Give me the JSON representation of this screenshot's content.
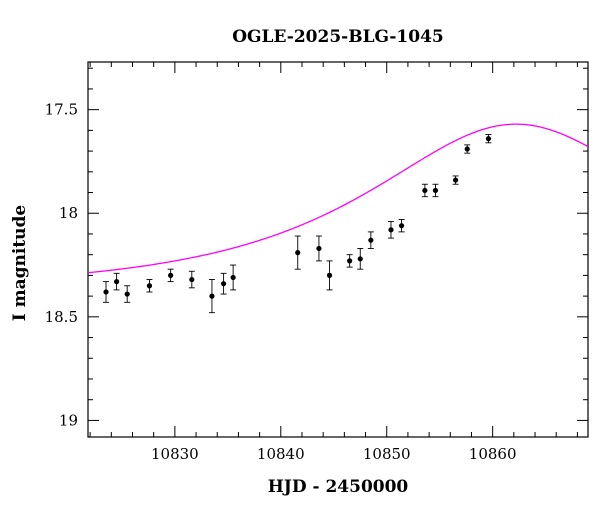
{
  "chart_data": {
    "type": "scatter",
    "title": "OGLE-2025-BLG-1045",
    "xlabel": "HJD - 2450000",
    "ylabel": "I magnitude",
    "xlim": [
      10821.8,
      10869.0
    ],
    "ylim": [
      19.08,
      17.27
    ],
    "y_inverted": true,
    "xticks": [
      10830,
      10840,
      10850,
      10860
    ],
    "yticks": [
      17.5,
      18,
      18.5,
      19
    ],
    "ytick_labels": [
      "17.5",
      "18",
      "18.5",
      "19"
    ],
    "xminor_step": 2,
    "yminor_step": 0.1,
    "grid": false,
    "series": [
      {
        "kind": "points",
        "color": "#000000",
        "points": [
          {
            "x": 10823.5,
            "y": 18.38,
            "err": 0.05
          },
          {
            "x": 10824.5,
            "y": 18.33,
            "err": 0.04
          },
          {
            "x": 10825.5,
            "y": 18.39,
            "err": 0.04
          },
          {
            "x": 10827.6,
            "y": 18.35,
            "err": 0.03
          },
          {
            "x": 10829.6,
            "y": 18.3,
            "err": 0.03
          },
          {
            "x": 10831.6,
            "y": 18.32,
            "err": 0.04
          },
          {
            "x": 10833.5,
            "y": 18.4,
            "err": 0.08
          },
          {
            "x": 10834.6,
            "y": 18.34,
            "err": 0.05
          },
          {
            "x": 10835.5,
            "y": 18.31,
            "err": 0.06
          },
          {
            "x": 10841.6,
            "y": 18.19,
            "err": 0.08
          },
          {
            "x": 10843.6,
            "y": 18.17,
            "err": 0.06
          },
          {
            "x": 10844.6,
            "y": 18.3,
            "err": 0.07
          },
          {
            "x": 10846.5,
            "y": 18.23,
            "err": 0.03
          },
          {
            "x": 10847.5,
            "y": 18.22,
            "err": 0.05
          },
          {
            "x": 10848.5,
            "y": 18.13,
            "err": 0.04
          },
          {
            "x": 10850.4,
            "y": 18.08,
            "err": 0.04
          },
          {
            "x": 10851.4,
            "y": 18.06,
            "err": 0.03
          },
          {
            "x": 10853.6,
            "y": 17.89,
            "err": 0.03
          },
          {
            "x": 10854.6,
            "y": 17.89,
            "err": 0.03
          },
          {
            "x": 10856.5,
            "y": 17.84,
            "err": 0.02
          },
          {
            "x": 10857.6,
            "y": 17.69,
            "err": 0.02
          },
          {
            "x": 10859.6,
            "y": 17.64,
            "err": 0.02
          }
        ]
      },
      {
        "kind": "model",
        "color": "#ff00ff",
        "baseline": 18.37,
        "peak_x": 10862.2,
        "peak_y": 17.57,
        "u0": 0.75,
        "tE": 22.0
      }
    ]
  }
}
